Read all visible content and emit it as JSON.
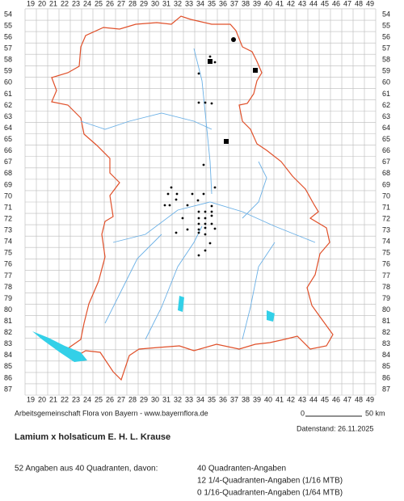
{
  "grid": {
    "columns": [
      19,
      20,
      21,
      22,
      23,
      24,
      25,
      26,
      27,
      28,
      29,
      30,
      31,
      32,
      33,
      34,
      35,
      36,
      37,
      38,
      39,
      40,
      41,
      42,
      43,
      44,
      45,
      46,
      47,
      48,
      49
    ],
    "rows": [
      54,
      55,
      56,
      57,
      58,
      59,
      60,
      61,
      62,
      63,
      64,
      65,
      66,
      67,
      68,
      69,
      70,
      71,
      72,
      73,
      74,
      75,
      76,
      77,
      78,
      79,
      80,
      81,
      82,
      83,
      84,
      85,
      86,
      87
    ]
  },
  "credit": "Arbeitsgemeinschaft Flora von Bayern - www.bayernflora.de",
  "scale": {
    "start": "0",
    "end": "50 km"
  },
  "date": "Datenstand: 26.11.2025",
  "title": "Lamium x holsaticum E. H. L. Krause",
  "summary": "52 Angaben aus 40 Quadranten, davon:",
  "counts": [
    "40 Quadranten-Angaben",
    "12 1/4-Quadranten-Angaben (1/16 MTB)",
    "0 1/16-Quadranten-Angaben (1/64 MTB)"
  ]
}
